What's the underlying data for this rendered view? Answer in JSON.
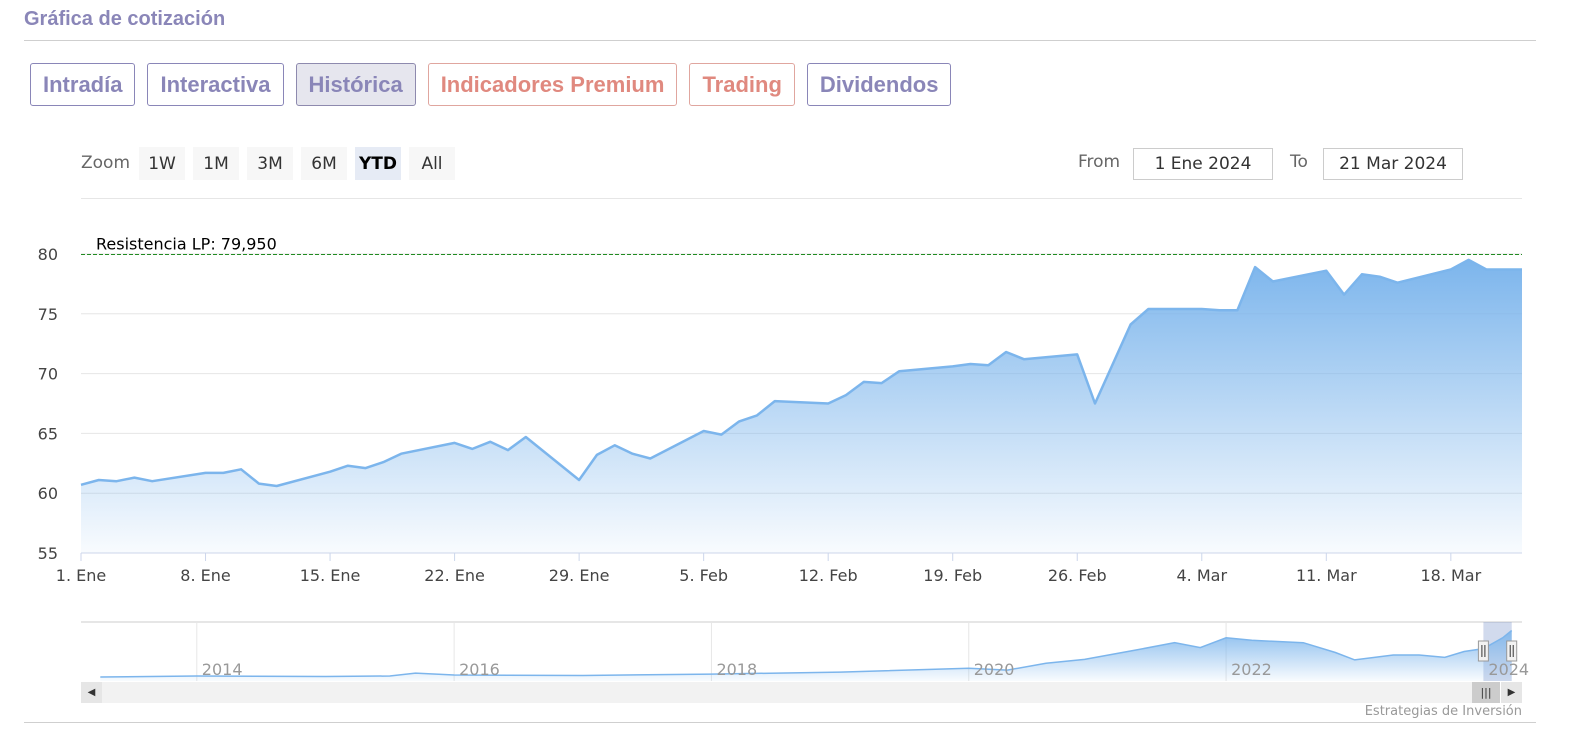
{
  "header": {
    "title": "Gráfica de cotización"
  },
  "tabs": [
    {
      "label": "Intradía",
      "style": "normal"
    },
    {
      "label": "Interactiva",
      "style": "normal"
    },
    {
      "label": "Histórica",
      "style": "active"
    },
    {
      "label": "Indicadores Premium",
      "style": "premium"
    },
    {
      "label": "Trading",
      "style": "premium"
    },
    {
      "label": "Dividendos",
      "style": "normal"
    }
  ],
  "range_selector": {
    "zoom_label": "Zoom",
    "buttons": [
      "1W",
      "1M",
      "3M",
      "6M",
      "YTD",
      "All"
    ],
    "selected": "YTD",
    "from_label": "From",
    "from_value": "1 Ene 2024",
    "to_label": "To",
    "to_value": "21 Mar 2024"
  },
  "credits": "Estrategias de Inversión",
  "navigator_icons": {
    "left": "arrow-left-icon",
    "right": "arrow-right-icon",
    "thumb": "grip-icon",
    "handle": "handle-grip-icon"
  },
  "colors": {
    "accent": "#8a86b8",
    "premium": "#e0897f",
    "series": "#7cb5ec",
    "resistance": "#228b22"
  },
  "chart_data": {
    "type": "area",
    "yticks": [
      55,
      60,
      65,
      70,
      75,
      80
    ],
    "ylim": [
      55,
      81.5
    ],
    "xlim": [
      "2024-01-01",
      "2024-03-22"
    ],
    "xticks": [
      {
        "date": "2024-01-01",
        "label": "1. Ene"
      },
      {
        "date": "2024-01-08",
        "label": "8. Ene"
      },
      {
        "date": "2024-01-15",
        "label": "15. Ene"
      },
      {
        "date": "2024-01-22",
        "label": "22. Ene"
      },
      {
        "date": "2024-01-29",
        "label": "29. Ene"
      },
      {
        "date": "2024-02-05",
        "label": "5. Feb"
      },
      {
        "date": "2024-02-12",
        "label": "12. Feb"
      },
      {
        "date": "2024-02-19",
        "label": "19. Feb"
      },
      {
        "date": "2024-02-26",
        "label": "26. Feb"
      },
      {
        "date": "2024-03-04",
        "label": "4. Mar"
      },
      {
        "date": "2024-03-11",
        "label": "11. Mar"
      },
      {
        "date": "2024-03-18",
        "label": "18. Mar"
      }
    ],
    "plot_line": {
      "label": "Resistencia LP: 79,950",
      "value": 79.95
    },
    "series": [
      {
        "data": [
          [
            "2024-01-01",
            60.7
          ],
          [
            "2024-01-02",
            61.1
          ],
          [
            "2024-01-03",
            61.0
          ],
          [
            "2024-01-04",
            61.3
          ],
          [
            "2024-01-05",
            61.0
          ],
          [
            "2024-01-08",
            61.7
          ],
          [
            "2024-01-09",
            61.7
          ],
          [
            "2024-01-10",
            62.0
          ],
          [
            "2024-01-11",
            60.8
          ],
          [
            "2024-01-12",
            60.6
          ],
          [
            "2024-01-15",
            61.8
          ],
          [
            "2024-01-16",
            62.3
          ],
          [
            "2024-01-17",
            62.1
          ],
          [
            "2024-01-18",
            62.6
          ],
          [
            "2024-01-19",
            63.3
          ],
          [
            "2024-01-22",
            64.2
          ],
          [
            "2024-01-23",
            63.7
          ],
          [
            "2024-01-24",
            64.3
          ],
          [
            "2024-01-25",
            63.6
          ],
          [
            "2024-01-26",
            64.7
          ],
          [
            "2024-01-29",
            61.1
          ],
          [
            "2024-01-30",
            63.2
          ],
          [
            "2024-01-31",
            64.0
          ],
          [
            "2024-02-01",
            63.3
          ],
          [
            "2024-02-02",
            62.9
          ],
          [
            "2024-02-05",
            65.2
          ],
          [
            "2024-02-06",
            64.9
          ],
          [
            "2024-02-07",
            66.0
          ],
          [
            "2024-02-08",
            66.5
          ],
          [
            "2024-02-09",
            67.7
          ],
          [
            "2024-02-12",
            67.5
          ],
          [
            "2024-02-13",
            68.2
          ],
          [
            "2024-02-14",
            69.3
          ],
          [
            "2024-02-15",
            69.2
          ],
          [
            "2024-02-16",
            70.2
          ],
          [
            "2024-02-19",
            70.6
          ],
          [
            "2024-02-20",
            70.8
          ],
          [
            "2024-02-21",
            70.7
          ],
          [
            "2024-02-22",
            71.8
          ],
          [
            "2024-02-23",
            71.2
          ],
          [
            "2024-02-26",
            71.6
          ],
          [
            "2024-02-27",
            67.5
          ],
          [
            "2024-02-28",
            70.8
          ],
          [
            "2024-02-29",
            74.1
          ],
          [
            "2024-03-01",
            75.4
          ],
          [
            "2024-03-04",
            75.4
          ],
          [
            "2024-03-05",
            75.3
          ],
          [
            "2024-03-06",
            75.3
          ],
          [
            "2024-03-07",
            78.9
          ],
          [
            "2024-03-08",
            77.7
          ],
          [
            "2024-03-11",
            78.6
          ],
          [
            "2024-03-12",
            76.6
          ],
          [
            "2024-03-13",
            78.3
          ],
          [
            "2024-03-14",
            78.1
          ],
          [
            "2024-03-15",
            77.6
          ],
          [
            "2024-03-18",
            78.7
          ],
          [
            "2024-03-19",
            79.5
          ],
          [
            "2024-03-20",
            78.7
          ],
          [
            "2024-03-21",
            78.7
          ]
        ]
      }
    ],
    "navigator": {
      "xlim": [
        2013.1,
        2024.3
      ],
      "ylim": [
        0,
        100
      ],
      "labels": [
        "2014",
        "2016",
        "2018",
        "2020",
        "2022",
        "2024"
      ],
      "grid": [
        2014,
        2016,
        2018,
        2020,
        2022
      ],
      "selected_range": [
        2024.0,
        2024.22
      ],
      "series": [
        [
          2013.25,
          0
        ],
        [
          2014.0,
          2
        ],
        [
          2015.0,
          1
        ],
        [
          2015.5,
          2
        ],
        [
          2015.7,
          8
        ],
        [
          2016.0,
          4
        ],
        [
          2017.0,
          3
        ],
        [
          2018.0,
          6
        ],
        [
          2019.0,
          10
        ],
        [
          2020.0,
          18
        ],
        [
          2020.3,
          14
        ],
        [
          2020.6,
          28
        ],
        [
          2020.9,
          36
        ],
        [
          2021.3,
          55
        ],
        [
          2021.6,
          70
        ],
        [
          2021.8,
          60
        ],
        [
          2022.0,
          80
        ],
        [
          2022.2,
          75
        ],
        [
          2022.6,
          70
        ],
        [
          2022.85,
          50
        ],
        [
          2023.0,
          35
        ],
        [
          2023.3,
          45
        ],
        [
          2023.5,
          45
        ],
        [
          2023.7,
          40
        ],
        [
          2023.85,
          52
        ],
        [
          2024.0,
          58
        ],
        [
          2024.15,
          80
        ],
        [
          2024.22,
          95
        ]
      ]
    }
  }
}
